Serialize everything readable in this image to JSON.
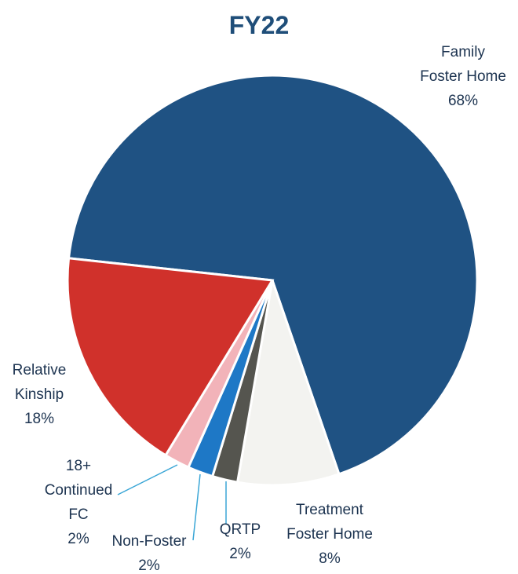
{
  "chart_data": {
    "type": "pie",
    "title": "FY22",
    "categories": [
      "Family\nFoster Home",
      "Treatment\nFoster Home",
      "QRTP",
      "Non-Foster",
      "18+\nContinued\nFC",
      "Relative\nKinship"
    ],
    "values": [
      68,
      8,
      2,
      2,
      2,
      18
    ],
    "value_labels": [
      "68%",
      "8%",
      "2%",
      "2%",
      "2%",
      "18%"
    ],
    "colors": [
      "#1f5283",
      "#f3f3f0",
      "#55554f",
      "#1e78c6",
      "#f2b3b9",
      "#d0312b"
    ]
  }
}
